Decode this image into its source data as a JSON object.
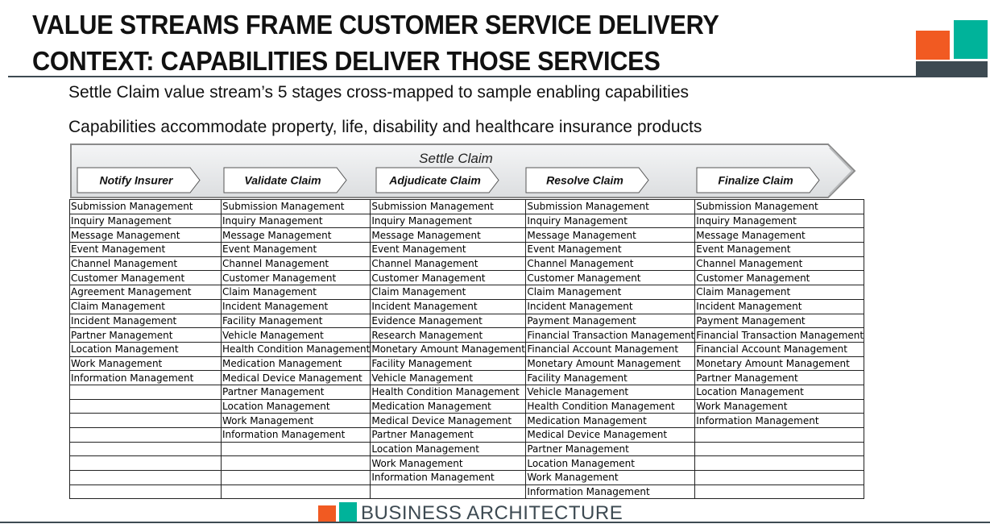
{
  "title": {
    "line1": "VALUE STREAMS FRAME CUSTOMER SERVICE DELIVERY",
    "line2": "CONTEXT: CAPABILITIES DELIVER THOSE SERVICES"
  },
  "subtitles": [
    "Settle Claim value stream’s 5 stages cross-mapped to sample enabling capabilities",
    "Capabilities accommodate property, life, disability and healthcare insurance products"
  ],
  "value_stream": {
    "name": "Settle Claim",
    "stages": [
      "Notify Insurer",
      "Validate Claim",
      "Adjudicate Claim",
      "Resolve Claim",
      "Finalize Claim"
    ]
  },
  "capability_columns": [
    [
      "Submission Management",
      "Inquiry Management",
      "Message Management",
      "Event Management",
      "Channel Management",
      "Customer Management",
      "Agreement Management",
      "Claim Management",
      "Incident Management",
      "Partner Management",
      "Location Management",
      "Work Management",
      "Information Management"
    ],
    [
      "Submission Management",
      "Inquiry Management",
      "Message Management",
      "Event Management",
      "Channel Management",
      "Customer Management",
      "Claim Management",
      "Incident Management",
      "Facility Management",
      "Vehicle Management",
      "Health Condition Management",
      "Medication Management",
      "Medical Device Management",
      "Partner Management",
      "Location Management",
      "Work Management",
      "Information Management"
    ],
    [
      "Submission Management",
      "Inquiry Management",
      "Message Management",
      "Event Management",
      "Channel Management",
      "Customer Management",
      "Claim Management",
      "Incident Management",
      "Evidence Management",
      "Research Management",
      "Monetary Amount Management",
      "Facility Management",
      "Vehicle Management",
      "Health Condition Management",
      "Medication Management",
      "Medical Device Management",
      "Partner Management",
      "Location Management",
      "Work Management",
      "Information Management"
    ],
    [
      "Submission Management",
      "Inquiry Management",
      "Message Management",
      "Event Management",
      "Channel Management",
      "Customer Management",
      "Claim Management",
      "Incident Management",
      "Payment Management",
      "Financial Transaction Management",
      "Financial Account Management",
      "Monetary Amount Management",
      "Facility Management",
      "Vehicle Management",
      "Health Condition Management",
      "Medication Management",
      "Medical Device Management",
      "Partner Management",
      "Location Management",
      "Work Management",
      "Information Management"
    ],
    [
      "Submission Management",
      "Inquiry Management",
      "Message Management",
      "Event Management",
      "Channel Management",
      "Customer Management",
      "Claim Management",
      "Incident Management",
      "Payment Management",
      "Financial Transaction Management",
      "Financial Account Management",
      "Monetary Amount Management",
      "Partner Management",
      "Location Management",
      "Work Management",
      "Information Management"
    ]
  ],
  "footer": {
    "text": "BUSINESS ARCHITECTURE"
  },
  "colors": {
    "orange": "#f15a22",
    "teal": "#00b39a",
    "slate": "#3d4a52",
    "banner_fill": "#e9eaec",
    "banner_stroke": "#8a8a8a"
  }
}
